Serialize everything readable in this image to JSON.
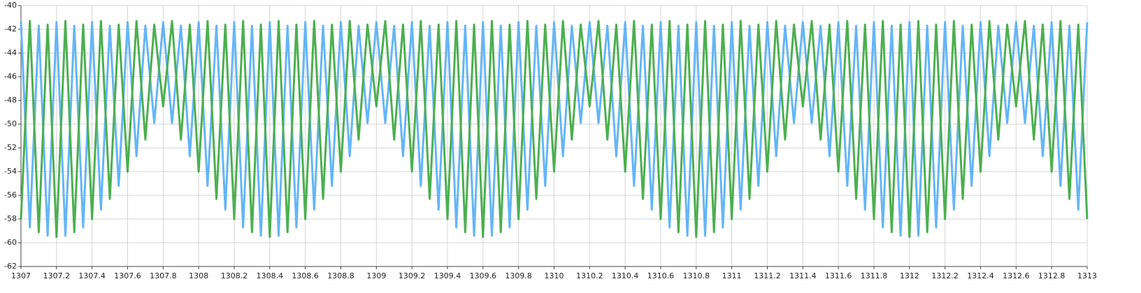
{
  "chart_data": {
    "type": "line",
    "x": [
      1307,
      1307.05,
      1307.1,
      1307.15,
      1307.2,
      1307.25,
      1307.3,
      1307.35,
      1307.4,
      1307.45,
      1307.5,
      1307.55,
      1307.6,
      1307.65,
      1307.7,
      1307.75,
      1307.8,
      1307.85,
      1307.9,
      1307.95,
      1308,
      1308.05,
      1308.1,
      1308.15,
      1308.2,
      1308.25,
      1308.3,
      1308.35,
      1308.4,
      1308.45,
      1308.5,
      1308.55,
      1308.6,
      1308.65,
      1308.7,
      1308.75,
      1308.8,
      1308.85,
      1308.9,
      1308.95,
      1309,
      1309.05,
      1309.1,
      1309.15,
      1309.2,
      1309.25,
      1309.3,
      1309.35,
      1309.4,
      1309.45,
      1309.5,
      1309.55,
      1309.6,
      1309.65,
      1309.7,
      1309.75,
      1309.8,
      1309.85,
      1309.9,
      1309.95,
      1310,
      1310.05,
      1310.1,
      1310.15,
      1310.2,
      1310.25,
      1310.3,
      1310.35,
      1310.4,
      1310.45,
      1310.5,
      1310.55,
      1310.6,
      1310.65,
      1310.7,
      1310.75,
      1310.8,
      1310.85,
      1310.9,
      1310.95,
      1311,
      1311.05,
      1311.1,
      1311.15,
      1311.2,
      1311.25,
      1311.3,
      1311.35,
      1311.4,
      1311.45,
      1311.5,
      1311.55,
      1311.6,
      1311.65,
      1311.7,
      1311.75,
      1311.8,
      1311.85,
      1311.9,
      1311.95,
      1312,
      1312.05,
      1312.1,
      1312.15,
      1312.2,
      1312.25,
      1312.3,
      1312.35,
      1312.4,
      1312.45,
      1312.5,
      1312.55,
      1312.6,
      1312.65,
      1312.7,
      1312.75,
      1312.8,
      1312.85,
      1312.9,
      1312.95,
      1313
    ],
    "series": [
      {
        "color": "#64b5f6",
        "values": [
          -41.4,
          -58.7,
          -41.7,
          -59.4,
          -41.4,
          -59.4,
          -41.7,
          -58.7,
          -41.4,
          -57.2,
          -41.7,
          -55.2,
          -41.4,
          -52.7,
          -41.7,
          -49.9,
          -41.4,
          -49.9,
          -41.7,
          -52.7,
          -41.4,
          -55.2,
          -41.7,
          -57.2,
          -41.4,
          -58.7,
          -41.7,
          -59.4,
          -41.4,
          -59.4,
          -41.7,
          -58.7,
          -41.4,
          -57.2,
          -41.7,
          -55.2,
          -41.4,
          -52.7,
          -41.7,
          -49.9,
          -41.4,
          -49.9,
          -41.7,
          -52.7,
          -41.4,
          -55.2,
          -41.7,
          -57.2,
          -41.4,
          -58.7,
          -41.7,
          -59.4,
          -41.4,
          -59.4,
          -41.7,
          -58.7,
          -41.4,
          -57.2,
          -41.7,
          -55.2,
          -41.4,
          -52.7,
          -41.7,
          -49.9,
          -41.4,
          -49.9,
          -41.7,
          -52.7,
          -41.4,
          -55.2,
          -41.7,
          -57.2,
          -41.4,
          -58.7,
          -41.7,
          -59.4,
          -41.4,
          -59.4,
          -41.7,
          -58.7,
          -41.4,
          -57.2,
          -41.7,
          -55.2,
          -41.4,
          -52.7,
          -41.7,
          -49.9,
          -41.4,
          -49.9,
          -41.7,
          -52.7,
          -41.4,
          -55.2,
          -41.7,
          -57.2,
          -41.4,
          -58.7,
          -41.7,
          -59.4,
          -41.4,
          -59.4,
          -41.7,
          -58.7,
          -41.4,
          -57.2,
          -41.7,
          -55.2,
          -41.4,
          -52.7,
          -41.7,
          -49.9,
          -41.4,
          -49.9,
          -41.7,
          -52.7,
          -41.4,
          -55.2,
          -41.7,
          -57.2,
          -41.4
        ]
      },
      {
        "color": "#4caf50",
        "values": [
          -58.0,
          -41.3,
          -59.1,
          -41.6,
          -59.5,
          -41.3,
          -59.1,
          -41.6,
          -58.0,
          -41.3,
          -56.3,
          -41.6,
          -54.0,
          -41.3,
          -51.3,
          -41.6,
          -48.5,
          -41.3,
          -51.3,
          -41.6,
          -54.0,
          -41.3,
          -56.3,
          -41.6,
          -58.0,
          -41.3,
          -59.1,
          -41.6,
          -59.5,
          -41.3,
          -59.1,
          -41.6,
          -58.0,
          -41.3,
          -56.3,
          -41.6,
          -54.0,
          -41.3,
          -51.3,
          -41.6,
          -48.5,
          -41.3,
          -51.3,
          -41.6,
          -54.0,
          -41.3,
          -56.3,
          -41.6,
          -58.0,
          -41.3,
          -59.1,
          -41.6,
          -59.5,
          -41.3,
          -59.1,
          -41.6,
          -58.0,
          -41.3,
          -56.3,
          -41.6,
          -54.0,
          -41.3,
          -51.3,
          -41.6,
          -48.5,
          -41.3,
          -51.3,
          -41.6,
          -54.0,
          -41.3,
          -56.3,
          -41.6,
          -58.0,
          -41.3,
          -59.1,
          -41.6,
          -59.5,
          -41.3,
          -59.1,
          -41.6,
          -58.0,
          -41.3,
          -56.3,
          -41.6,
          -54.0,
          -41.3,
          -51.3,
          -41.6,
          -48.5,
          -41.3,
          -51.3,
          -41.6,
          -54.0,
          -41.3,
          -56.3,
          -41.6,
          -58.0,
          -41.3,
          -59.1,
          -41.6,
          -59.5,
          -41.3,
          -59.1,
          -41.6,
          -58.0,
          -41.3,
          -56.3,
          -41.6,
          -54.0,
          -41.3,
          -51.3,
          -41.6,
          -48.5,
          -41.3,
          -51.3,
          -41.6,
          -54.0,
          -41.3,
          -56.3,
          -41.6,
          -58.0
        ]
      }
    ],
    "xlim": [
      1307,
      1313
    ],
    "xticks": [
      1307,
      1307.2,
      1307.4,
      1307.6,
      1307.8,
      1308,
      1308.2,
      1308.4,
      1308.6,
      1308.8,
      1309,
      1309.2,
      1309.4,
      1309.6,
      1309.8,
      1310,
      1310.2,
      1310.4,
      1310.6,
      1310.8,
      1311,
      1311.2,
      1311.4,
      1311.6,
      1311.8,
      1312,
      1312.2,
      1312.4,
      1312.6,
      1312.8,
      1313
    ],
    "ylim": [
      -62,
      -40
    ],
    "yticks": [
      -62,
      -60,
      -58,
      -56,
      -54,
      -52,
      -50,
      -48,
      -46,
      -44,
      -42,
      -40
    ],
    "grid": true
  }
}
